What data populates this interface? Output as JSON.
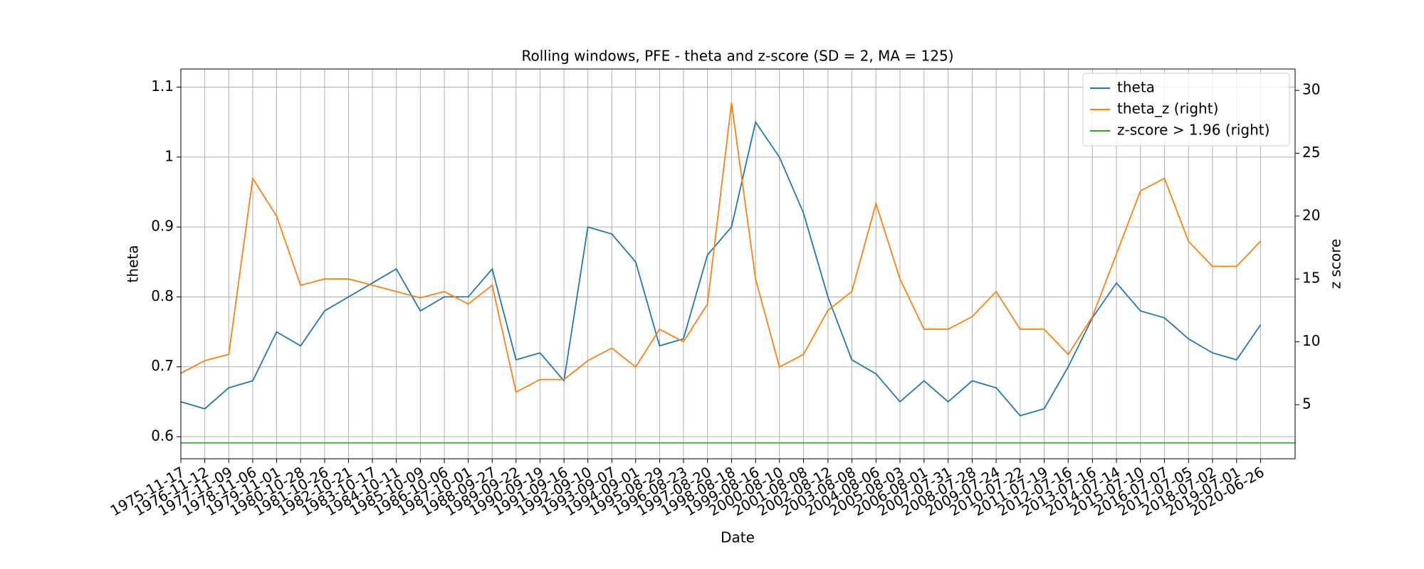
{
  "chart_data": {
    "type": "line",
    "title": "Rolling windows, PFE - theta and z-score (SD = 2, MA = 125)",
    "x_label": "Date",
    "y_label": "theta",
    "y2_label": "z score",
    "x": [
      "1975-11-17",
      "1976-11-12",
      "1977-11-09",
      "1978-11-06",
      "1979-11-01",
      "1980-10-28",
      "1981-10-26",
      "1982-10-21",
      "1983-10-17",
      "1984-10-11",
      "1985-10-09",
      "1986-10-06",
      "1987-10-01",
      "1988-09-27",
      "1989-09-22",
      "1990-09-19",
      "1991-09-16",
      "1992-09-10",
      "1993-09-07",
      "1994-09-01",
      "1995-08-29",
      "1996-08-23",
      "1997-08-20",
      "1998-08-18",
      "1999-08-16",
      "2000-08-10",
      "2001-08-08",
      "2002-08-12",
      "2003-08-08",
      "2004-08-06",
      "2005-08-03",
      "2006-08-01",
      "2007-07-31",
      "2008-07-28",
      "2009-07-24",
      "2010-07-22",
      "2011-07-19",
      "2012-07-16",
      "2013-07-16",
      "2014-07-14",
      "2015-07-10",
      "2016-07-07",
      "2017-07-05",
      "2018-07-02",
      "2019-07-01",
      "2020-06-26"
    ],
    "xlim": [
      "1975-11-17",
      "2021-11-30"
    ],
    "series": [
      {
        "name": "theta",
        "color": "#1f77b4",
        "axis": "y",
        "values": [
          0.65,
          0.64,
          0.67,
          0.68,
          0.75,
          0.73,
          0.78,
          0.8,
          0.82,
          0.84,
          0.78,
          0.8,
          0.8,
          0.84,
          0.71,
          0.72,
          0.68,
          0.9,
          0.89,
          0.85,
          0.73,
          0.74,
          0.86,
          0.9,
          1.05,
          1.0,
          0.92,
          0.8,
          0.71,
          0.69,
          0.65,
          0.68,
          0.65,
          0.68,
          0.67,
          0.63,
          0.64,
          0.7,
          0.77,
          0.82,
          0.78,
          0.77,
          0.74,
          0.72,
          0.71,
          0.76
        ]
      },
      {
        "name": "theta_z (right)",
        "color": "#ff7f0e",
        "axis": "y2",
        "values": [
          7.5,
          8.5,
          9,
          23,
          20,
          14.5,
          15,
          15,
          14.5,
          14,
          13.5,
          14,
          13,
          14.5,
          6,
          7,
          7,
          8.5,
          9.5,
          8,
          11,
          10,
          13,
          29,
          15,
          8,
          9,
          12.5,
          14,
          21,
          15,
          11,
          11,
          12,
          14,
          11,
          11,
          9,
          12,
          17,
          22,
          23,
          18,
          16,
          16,
          18
        ]
      },
      {
        "name": "z-score > 1.96 (right)",
        "color": "#2ca02c",
        "axis": "y2",
        "hline": 1.96
      }
    ],
    "ylim": [
      0.5685,
      1.126
    ],
    "yticks": [
      0.6,
      0.7,
      0.8,
      0.9,
      1.0,
      1.1
    ],
    "y2lim": [
      0.7,
      31.7
    ],
    "y2ticks": [
      5,
      10,
      15,
      20,
      25,
      30
    ],
    "grid": true,
    "legend": "upper right"
  }
}
